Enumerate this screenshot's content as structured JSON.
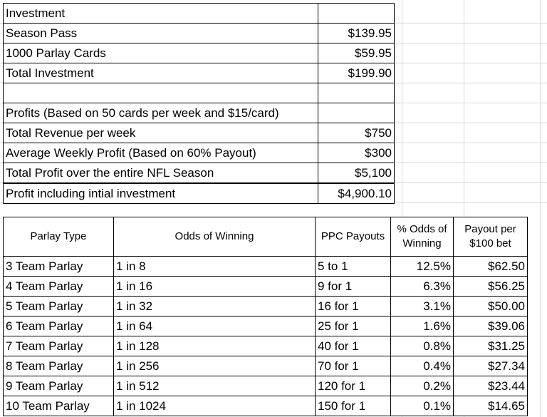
{
  "investment": {
    "rows": [
      {
        "label": "Investment",
        "value": ""
      },
      {
        "label": "Season Pass",
        "value": "$139.95"
      },
      {
        "label": "1000 Parlay Cards",
        "value": "$59.95"
      },
      {
        "label": "Total Investment",
        "value": "$199.90"
      },
      {
        "label": "",
        "value": ""
      },
      {
        "label": "Profits (Based on 50 cards per week and $15/card)",
        "value": ""
      },
      {
        "label": "Total Revenue per week",
        "value": "$750"
      },
      {
        "label": "Average Weekly Profit (Based on 60% Payout)",
        "value": "$300"
      },
      {
        "label": "Total Profit over the entire NFL Season",
        "value": "$5,100"
      },
      {
        "label": "Profit including intial investment",
        "value": "$4,900.10"
      }
    ]
  },
  "parlay": {
    "headers": {
      "type": "Parlay Type",
      "odds": "Odds of Winning",
      "payouts": "PPC Payouts",
      "pct_line1": "% Odds of",
      "pct_line2": "Winning",
      "payout_line1": "Payout per",
      "payout_line2": "$100 bet"
    },
    "rows": [
      {
        "type": "3 Team Parlay",
        "odds": "1 in 8",
        "payout": "5 to 1",
        "pct": "12.5%",
        "per100": "$62.50"
      },
      {
        "type": "4 Team Parlay",
        "odds": "1 in 16",
        "payout": "9 for 1",
        "pct": "6.3%",
        "per100": "$56.25"
      },
      {
        "type": "5 Team Parlay",
        "odds": "1 in 32",
        "payout": "16 for 1",
        "pct": "3.1%",
        "per100": "$50.00"
      },
      {
        "type": "6 Team Parlay",
        "odds": "1 in 64",
        "payout": "25 for 1",
        "pct": "1.6%",
        "per100": "$39.06"
      },
      {
        "type": "7 Team Parlay",
        "odds": "1 in 128",
        "payout": "40 for 1",
        "pct": "0.8%",
        "per100": "$31.25"
      },
      {
        "type": "8 Team Parlay",
        "odds": "1 in 256",
        "payout": "70 for 1",
        "pct": "0.4%",
        "per100": "$27.34"
      },
      {
        "type": "9 Team Parlay",
        "odds": "1 in 512",
        "payout": "120 for 1",
        "pct": "0.2%",
        "per100": "$23.44"
      },
      {
        "type": "10 Team Parlay",
        "odds": "1 in 1024",
        "payout": "150 for 1",
        "pct": "0.1%",
        "per100": "$14.65"
      }
    ]
  }
}
